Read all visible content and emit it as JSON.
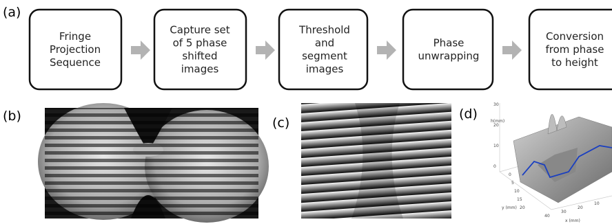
{
  "panels": {
    "a": {
      "label": "(a)",
      "steps": [
        {
          "lines": [
            "Fringe",
            "Projection",
            "Sequence"
          ]
        },
        {
          "lines": [
            "Capture set",
            "of 5 phase",
            "shifted",
            "images"
          ]
        },
        {
          "lines": [
            "Threshold",
            "and",
            "segment",
            "images"
          ]
        },
        {
          "lines": [
            "Phase",
            "unwrapping"
          ]
        },
        {
          "lines": [
            "Conversion",
            "from phase",
            "to height"
          ]
        }
      ]
    },
    "b": {
      "label": "(b)"
    },
    "c": {
      "label": "(c)"
    },
    "d": {
      "label": "(d)",
      "z_axis": {
        "label": "h(mm)",
        "ticks": [
          "30",
          "20",
          "10",
          "0"
        ]
      },
      "y_axis": {
        "label": "y (mm)",
        "ticks": [
          "0",
          "5",
          "10",
          "15",
          "20"
        ]
      },
      "x_axis": {
        "label": "x (mm)",
        "ticks": [
          "40",
          "30",
          "20",
          "10"
        ]
      }
    }
  }
}
